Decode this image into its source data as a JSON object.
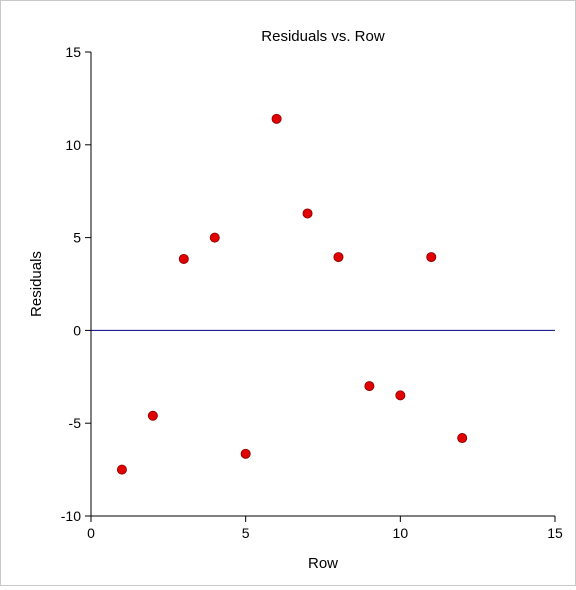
{
  "chart_data": {
    "type": "scatter",
    "title": "Residuals vs. Row",
    "xlabel": "Row",
    "ylabel": "Residuals",
    "xlim": [
      0,
      15
    ],
    "ylim": [
      -10,
      15
    ],
    "x_ticks": [
      0,
      5,
      10,
      15
    ],
    "y_ticks": [
      -10,
      -5,
      0,
      5,
      10,
      15
    ],
    "x_tick_labels": [
      "0",
      "5",
      "10",
      "15"
    ],
    "y_tick_labels": [
      "-10",
      "-5",
      "0",
      "5",
      "10",
      "15"
    ],
    "reference_line": 0,
    "grid": false,
    "series": [
      {
        "x": [
          1,
          2,
          3,
          4,
          5,
          6,
          7,
          8,
          9,
          10,
          11,
          12
        ],
        "y": [
          -7.5,
          -4.6,
          3.85,
          5.0,
          -6.65,
          11.4,
          6.3,
          3.95,
          -3.0,
          -3.5,
          3.95,
          -5.8
        ]
      }
    ],
    "colors": {
      "point": "#e00000",
      "point_stroke": "#8a0000",
      "reference_line": "#000080",
      "axis": "#000000"
    }
  }
}
